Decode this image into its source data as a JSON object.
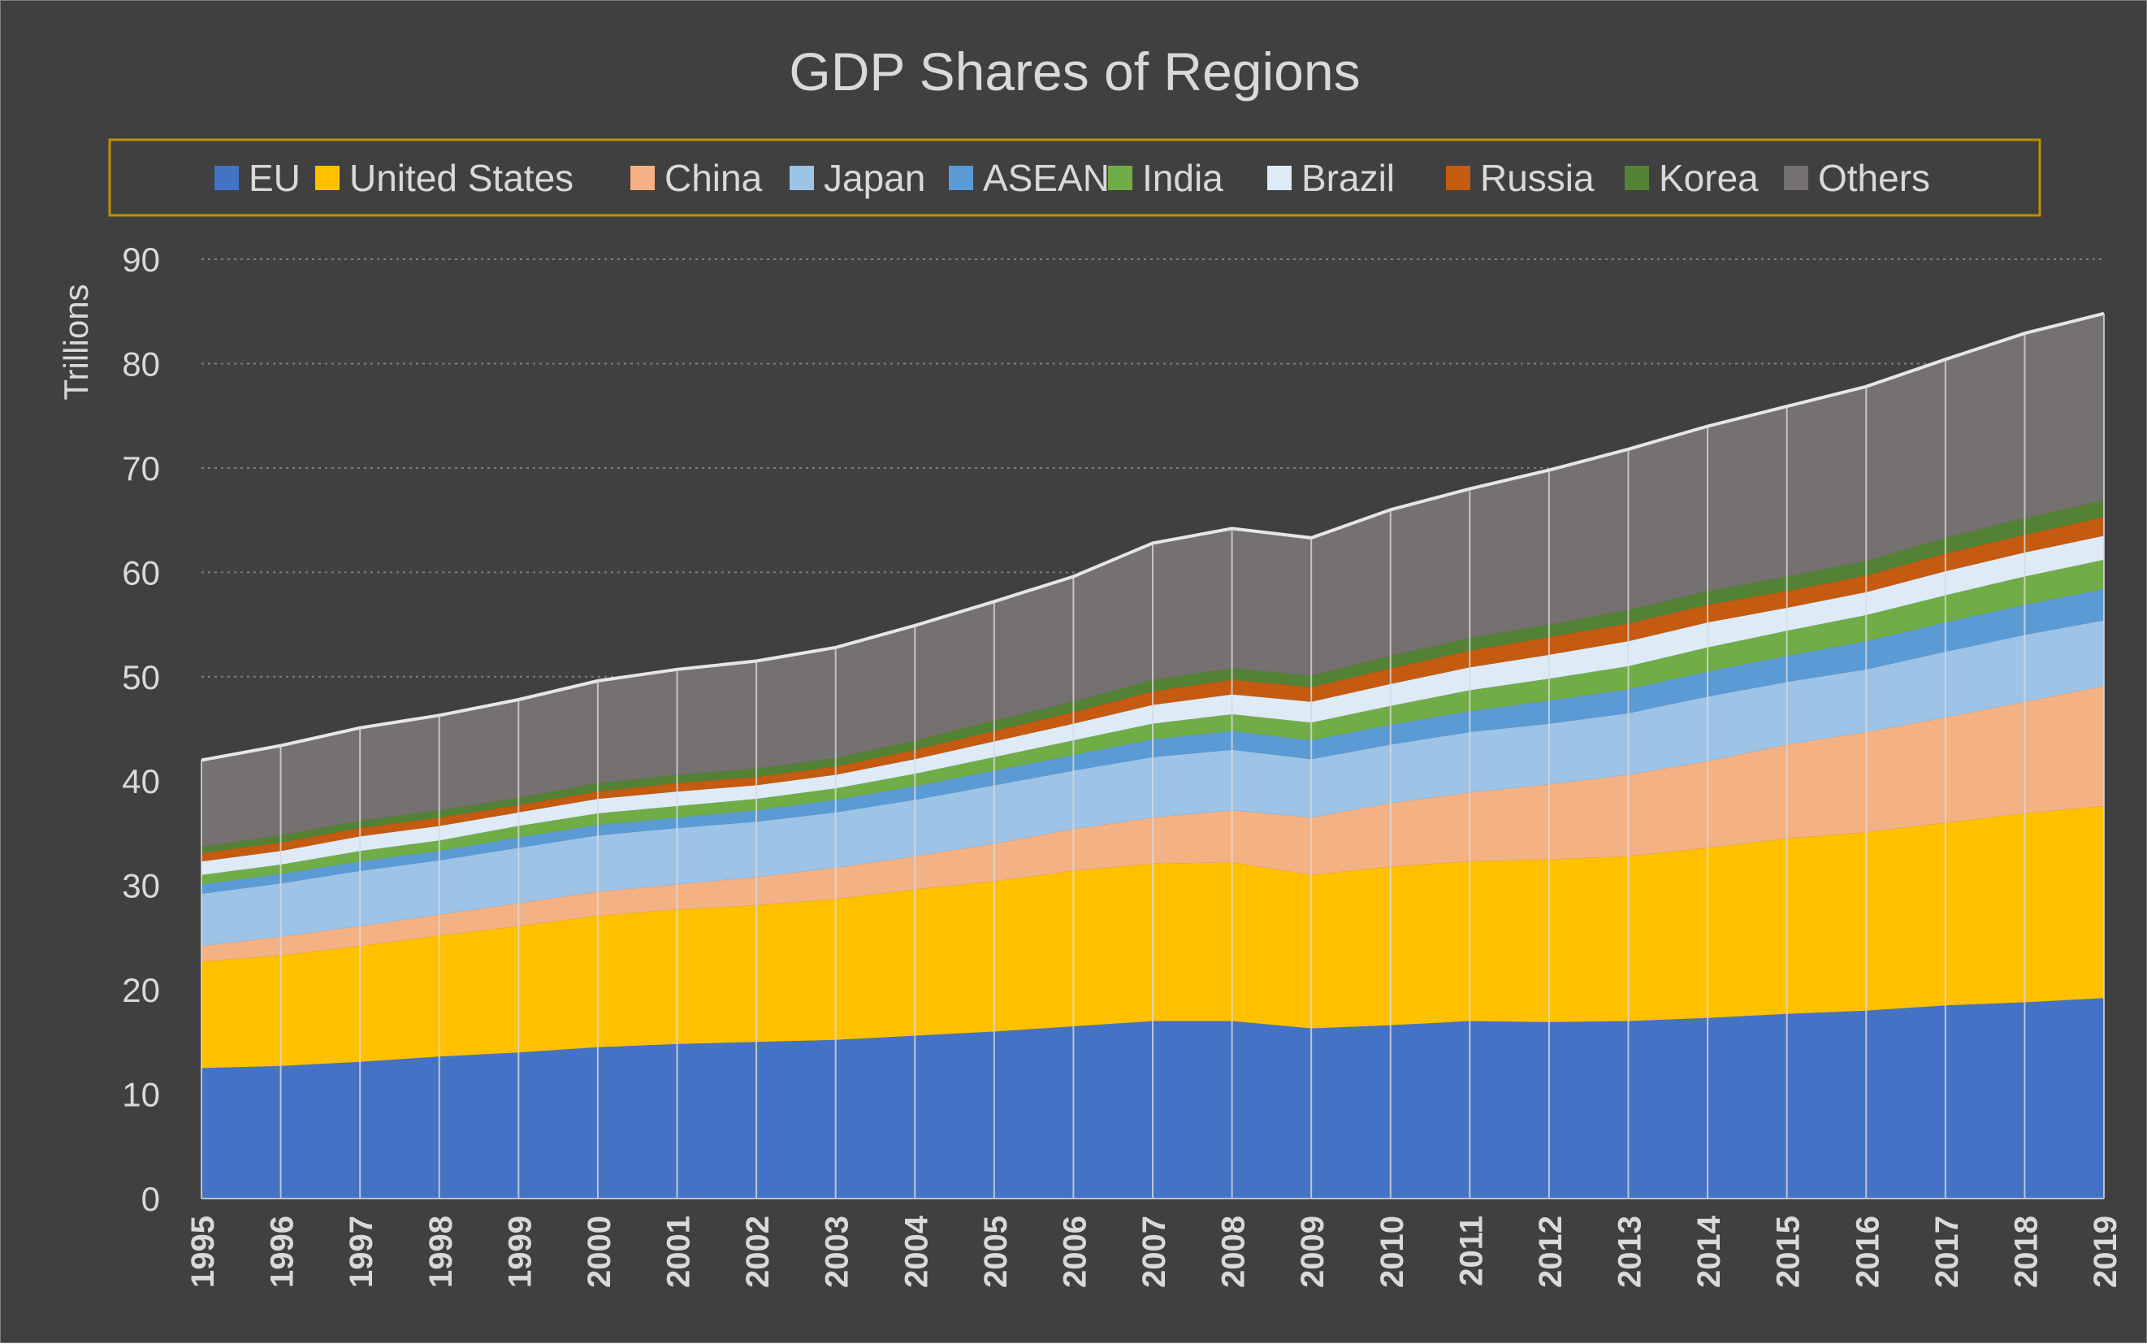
{
  "chart_data": {
    "type": "area",
    "stacked": true,
    "title": "GDP Shares of Regions",
    "ylabel": "Trillions",
    "xlabel": "",
    "ylim": [
      0,
      90
    ],
    "yticks": [
      0,
      10,
      20,
      30,
      40,
      50,
      60,
      70,
      80,
      90
    ],
    "grid": "horizontal dotted",
    "legend_position": "top",
    "categories": [
      "1995",
      "1996",
      "1997",
      "1998",
      "1999",
      "2000",
      "2001",
      "2002",
      "2003",
      "2004",
      "2005",
      "2006",
      "2007",
      "2008",
      "2009",
      "2010",
      "2011",
      "2012",
      "2013",
      "2014",
      "2015",
      "2016",
      "2017",
      "2018",
      "2019"
    ],
    "series": [
      {
        "name": "EU",
        "color": "#4472c4",
        "values": [
          12.5,
          12.7,
          13.1,
          13.6,
          14.0,
          14.5,
          14.8,
          15.0,
          15.2,
          15.6,
          16.0,
          16.5,
          17.0,
          17.0,
          16.3,
          16.6,
          17.0,
          16.9,
          17.0,
          17.3,
          17.7,
          18.0,
          18.5,
          18.8,
          19.2
        ]
      },
      {
        "name": "United States",
        "color": "#ffc000",
        "values": [
          10.2,
          10.6,
          11.1,
          11.6,
          12.1,
          12.6,
          12.9,
          13.1,
          13.5,
          14.0,
          14.4,
          14.9,
          15.1,
          15.2,
          14.7,
          15.2,
          15.3,
          15.6,
          15.8,
          16.3,
          16.8,
          17.1,
          17.5,
          18.1,
          18.4
        ]
      },
      {
        "name": "China",
        "color": "#f4b183",
        "values": [
          1.5,
          1.8,
          1.9,
          2.0,
          2.2,
          2.3,
          2.4,
          2.7,
          3.0,
          3.2,
          3.6,
          4.0,
          4.4,
          5.0,
          5.5,
          6.1,
          6.6,
          7.2,
          7.8,
          8.3,
          9.0,
          9.6,
          10.1,
          10.7,
          11.5
        ]
      },
      {
        "name": "Japan",
        "color": "#9dc3e6",
        "values": [
          5.0,
          5.1,
          5.3,
          5.2,
          5.3,
          5.4,
          5.4,
          5.3,
          5.3,
          5.4,
          5.6,
          5.6,
          5.8,
          5.8,
          5.6,
          5.6,
          5.8,
          5.8,
          5.9,
          6.2,
          6.0,
          6.0,
          6.3,
          6.4,
          6.3
        ]
      },
      {
        "name": "ASEAN",
        "color": "#5b9bd5",
        "values": [
          0.9,
          0.9,
          0.9,
          0.9,
          1.0,
          1.0,
          1.0,
          1.1,
          1.2,
          1.3,
          1.4,
          1.5,
          1.7,
          1.8,
          1.8,
          1.9,
          2.0,
          2.2,
          2.3,
          2.4,
          2.5,
          2.7,
          2.8,
          2.9,
          3.0
        ]
      },
      {
        "name": "India",
        "color": "#70ad47",
        "values": [
          0.9,
          0.9,
          1.0,
          1.0,
          1.1,
          1.1,
          1.1,
          1.1,
          1.1,
          1.2,
          1.3,
          1.4,
          1.5,
          1.6,
          1.7,
          1.8,
          2.0,
          2.1,
          2.2,
          2.3,
          2.4,
          2.5,
          2.6,
          2.7,
          2.8
        ]
      },
      {
        "name": "Brazil",
        "color": "#deebf7",
        "values": [
          1.3,
          1.3,
          1.4,
          1.4,
          1.3,
          1.4,
          1.4,
          1.3,
          1.3,
          1.4,
          1.5,
          1.6,
          1.8,
          1.9,
          2.0,
          2.1,
          2.2,
          2.3,
          2.4,
          2.4,
          2.2,
          2.2,
          2.3,
          2.3,
          2.3
        ]
      },
      {
        "name": "Russia",
        "color": "#c55a11",
        "values": [
          0.8,
          0.8,
          0.8,
          0.8,
          0.7,
          0.7,
          0.8,
          0.8,
          0.8,
          0.9,
          1.0,
          1.1,
          1.3,
          1.4,
          1.4,
          1.5,
          1.6,
          1.7,
          1.7,
          1.7,
          1.6,
          1.6,
          1.7,
          1.7,
          1.8
        ]
      },
      {
        "name": "Korea",
        "color": "#548235",
        "values": [
          0.6,
          0.7,
          0.7,
          0.7,
          0.7,
          0.8,
          0.8,
          0.8,
          0.8,
          0.9,
          1.0,
          1.0,
          1.1,
          1.1,
          1.1,
          1.2,
          1.2,
          1.2,
          1.3,
          1.3,
          1.4,
          1.4,
          1.5,
          1.6,
          1.6
        ]
      },
      {
        "name": "Others",
        "color": "#767171",
        "values": [
          8.3,
          8.6,
          8.9,
          9.1,
          9.4,
          9.8,
          10.1,
          10.3,
          10.6,
          11.0,
          11.4,
          12.0,
          13.1,
          13.4,
          13.2,
          14.0,
          14.3,
          14.8,
          15.4,
          15.8,
          16.3,
          16.7,
          17.1,
          17.7,
          17.9
        ]
      }
    ]
  }
}
